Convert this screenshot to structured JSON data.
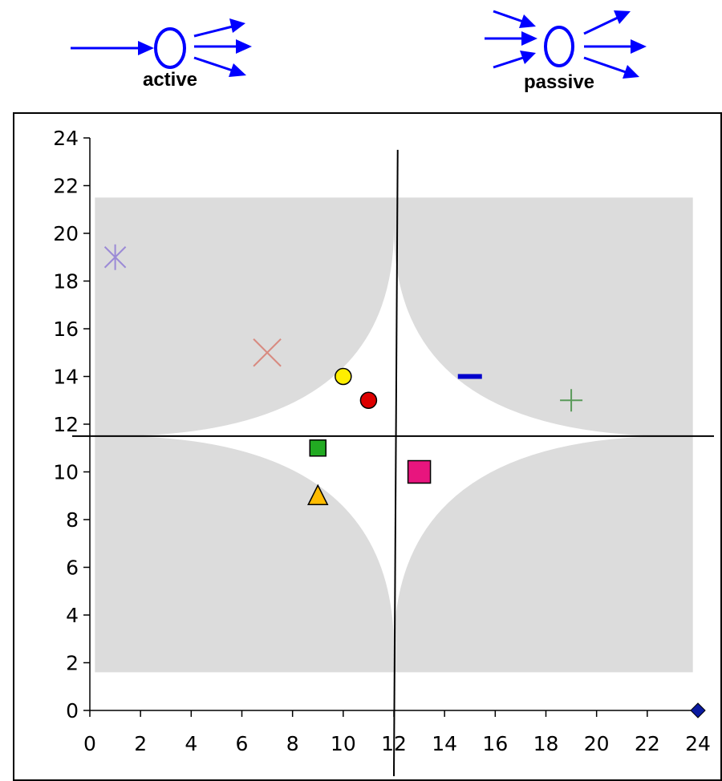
{
  "header": {
    "left_label": "active",
    "right_label": "passive",
    "arrow_color": "#0000ff"
  },
  "chart_data": {
    "type": "scatter",
    "xlim": [
      0,
      24
    ],
    "ylim": [
      0,
      24
    ],
    "x_ticks": [
      "0",
      "2",
      "4",
      "6",
      "8",
      "10",
      "12",
      "14",
      "16",
      "18",
      "20",
      "22",
      "24"
    ],
    "y_ticks": [
      "0",
      "2",
      "4",
      "6",
      "8",
      "10",
      "12",
      "14",
      "16",
      "18",
      "20",
      "22",
      "24"
    ],
    "grid": false,
    "reference_lines": {
      "x": 12,
      "y": 11.5
    },
    "background_region": {
      "x": [
        0.2,
        23.8
      ],
      "y": [
        1.6,
        21.5
      ],
      "color": "#dcdcdc"
    },
    "points": [
      {
        "x": 1,
        "y": 19,
        "marker": "asterisk",
        "color": "#9b8ad6"
      },
      {
        "x": 7,
        "y": 15,
        "marker": "x",
        "color": "#d88a80"
      },
      {
        "x": 10,
        "y": 14,
        "marker": "circle",
        "color": "#ffee00"
      },
      {
        "x": 11,
        "y": 13,
        "marker": "circle",
        "color": "#dd0000"
      },
      {
        "x": 15,
        "y": 14,
        "marker": "dash",
        "color": "#0000cc"
      },
      {
        "x": 19,
        "y": 13,
        "marker": "plus",
        "color": "#5a9a5a"
      },
      {
        "x": 9,
        "y": 11,
        "marker": "square",
        "color": "#22aa22"
      },
      {
        "x": 13,
        "y": 10,
        "marker": "square",
        "color": "#e8157e"
      },
      {
        "x": 9,
        "y": 9,
        "marker": "triangle",
        "color": "#ffbb00"
      },
      {
        "x": 24,
        "y": 0,
        "marker": "diamond",
        "color": "#0a1aa0"
      }
    ]
  }
}
